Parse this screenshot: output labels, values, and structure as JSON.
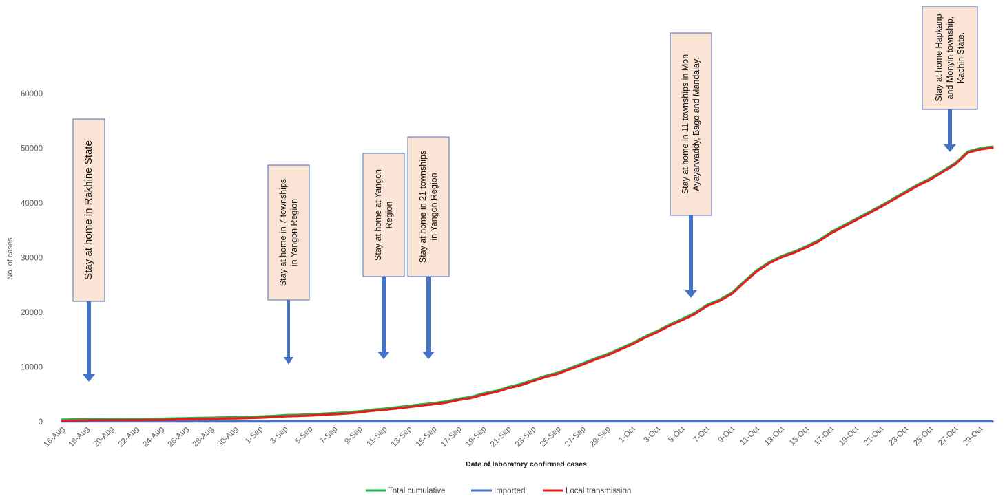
{
  "chart_data": {
    "type": "line",
    "title": "",
    "xlabel": "Date of laboratory confirmed cases",
    "ylabel": "No. of cases",
    "ylim": [
      0,
      60000
    ],
    "yticks": [
      "0",
      "10000",
      "20000",
      "30000",
      "40000",
      "50000",
      "60000"
    ],
    "grid": false,
    "legend_position": "bottom",
    "x": [
      "16-Aug",
      "17-Aug",
      "18-Aug",
      "19-Aug",
      "20-Aug",
      "21-Aug",
      "22-Aug",
      "23-Aug",
      "24-Aug",
      "25-Aug",
      "26-Aug",
      "27-Aug",
      "28-Aug",
      "29-Aug",
      "30-Aug",
      "31-Aug",
      "1-Sep",
      "2-Sep",
      "3-Sep",
      "4-Sep",
      "5-Sep",
      "6-Sep",
      "7-Sep",
      "8-Sep",
      "9-Sep",
      "10-Sep",
      "11-Sep",
      "12-Sep",
      "13-Sep",
      "14-Sep",
      "15-Sep",
      "16-Sep",
      "17-Sep",
      "18-Sep",
      "19-Sep",
      "20-Sep",
      "21-Sep",
      "22-Sep",
      "23-Sep",
      "24-Sep",
      "25-Sep",
      "26-Sep",
      "27-Sep",
      "28-Sep",
      "29-Sep",
      "30-Sep",
      "1-Oct",
      "2-Oct",
      "3-Oct",
      "4-Oct",
      "5-Oct",
      "6-Oct",
      "7-Oct",
      "8-Oct",
      "9-Oct",
      "10-Oct",
      "11-Oct",
      "12-Oct",
      "13-Oct",
      "14-Oct",
      "15-Oct",
      "16-Oct",
      "17-Oct",
      "18-Oct",
      "19-Oct",
      "20-Oct",
      "21-Oct",
      "22-Oct",
      "23-Oct",
      "24-Oct",
      "25-Oct",
      "26-Oct",
      "27-Oct",
      "28-Oct",
      "29-Oct",
      "30-Oct"
    ],
    "xtick_labels": [
      "16-Aug",
      "18-Aug",
      "20-Aug",
      "22-Aug",
      "24-Aug",
      "26-Aug",
      "28-Aug",
      "30-Aug",
      "1-Sep",
      "3-Sep",
      "5-Sep",
      "7-Sep",
      "9-Sep",
      "11-Sep",
      "13-Sep",
      "15-Sep",
      "17-Sep",
      "19-Sep",
      "21-Sep",
      "23-Sep",
      "25-Sep",
      "27-Sep",
      "29-Sep",
      "1-Oct",
      "3-Oct",
      "5-Oct",
      "7-Oct",
      "9-Oct",
      "11-Oct",
      "13-Oct",
      "15-Oct",
      "17-Oct",
      "19-Oct",
      "21-Oct",
      "23-Oct",
      "25-Oct",
      "27-Oct",
      "29-Oct"
    ],
    "series": [
      {
        "name": "Total cumulative",
        "color": "#22b14c",
        "values": [
          375,
          430,
          470,
          490,
          500,
          510,
          520,
          530,
          550,
          620,
          650,
          700,
          740,
          790,
          830,
          890,
          960,
          1060,
          1210,
          1260,
          1350,
          1480,
          1600,
          1730,
          1930,
          2220,
          2390,
          2660,
          2900,
          3180,
          3420,
          3710,
          4200,
          4550,
          5200,
          5650,
          6350,
          6900,
          7650,
          8400,
          9000,
          9850,
          10700,
          11600,
          12400,
          13400,
          14400,
          15600,
          16600,
          17800,
          18800,
          19900,
          21400,
          22300,
          23600,
          25700,
          27700,
          29200,
          30300,
          31100,
          32100,
          33200,
          34700,
          35900,
          37100,
          38300,
          39500,
          40800,
          42100,
          43400,
          44500,
          45900,
          47300,
          49400,
          50000,
          50300
        ]
      },
      {
        "name": "Imported",
        "color": "#4472c4",
        "values": [
          50,
          50,
          50,
          50,
          50,
          50,
          50,
          50,
          50,
          50,
          50,
          50,
          50,
          50,
          50,
          50,
          50,
          50,
          50,
          50,
          50,
          50,
          50,
          50,
          50,
          50,
          50,
          50,
          50,
          50,
          50,
          50,
          50,
          50,
          50,
          50,
          50,
          50,
          50,
          50,
          50,
          50,
          50,
          50,
          50,
          50,
          50,
          50,
          50,
          50,
          50,
          50,
          50,
          50,
          50,
          50,
          50,
          50,
          50,
          50,
          50,
          50,
          50,
          50,
          50,
          50,
          50,
          50,
          50,
          50,
          50,
          50,
          50,
          50,
          50,
          50
        ]
      },
      {
        "name": "Local transmission",
        "color": "#e81c1c",
        "values": [
          160,
          215,
          255,
          275,
          285,
          295,
          305,
          315,
          335,
          405,
          435,
          485,
          525,
          575,
          615,
          675,
          745,
          845,
          995,
          1045,
          1135,
          1265,
          1385,
          1515,
          1715,
          2005,
          2175,
          2445,
          2685,
          2965,
          3205,
          3495,
          3985,
          4335,
          4985,
          5435,
          6135,
          6685,
          7435,
          8185,
          8785,
          9635,
          10485,
          11385,
          12185,
          13185,
          14185,
          15385,
          16385,
          17585,
          18585,
          19685,
          21185,
          22085,
          23385,
          25485,
          27485,
          28985,
          30085,
          30885,
          31885,
          32985,
          34485,
          35685,
          36885,
          38085,
          39285,
          40585,
          41885,
          43185,
          44285,
          45685,
          47085,
          49185,
          49785,
          50085
        ]
      }
    ],
    "annotations": [
      {
        "text": "Stay at home  in Rakhine State",
        "date": "17-Aug"
      },
      {
        "text": "Stay at home in 7 townships in Yangon Region",
        "date": "3-Sep"
      },
      {
        "text": "Stay at home  at Yangon Region",
        "date": "11-Sep"
      },
      {
        "text": "Stay at home in  21 townships in Yangon Region",
        "date": "13-Sep"
      },
      {
        "text": "Stay at home in 11 townships in Mon Ayayarwaddy, Bago and Mandalay.",
        "date": "5-Oct"
      },
      {
        "text": "Stay at home Hapkanp and Monyin township, Kachin State.",
        "date": "27-Oct"
      }
    ],
    "annotation_box_color": "#fbe4d5",
    "annotation_border_color": "#4472c4",
    "arrow_color": "#4472c4"
  }
}
